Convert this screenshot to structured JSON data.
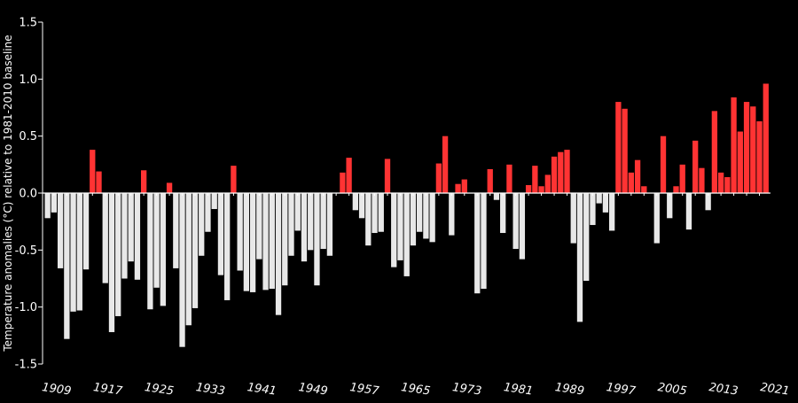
{
  "chart_data": {
    "type": "bar",
    "title": "",
    "xlabel": "",
    "ylabel": "Temperature anomalies (°C) relative to 1981-2010 baseline",
    "ylim": [
      -1.5,
      1.5
    ],
    "yticks": [
      "-1.5",
      "-1.0",
      "-0.5",
      "0.0",
      "0.5",
      "1.0",
      "1.5"
    ],
    "ytick_values": [
      -1.5,
      -1.0,
      -0.5,
      0.0,
      0.5,
      1.0,
      1.5
    ],
    "xtick_labels": [
      "1909",
      "1917",
      "1925",
      "1933",
      "1941",
      "1949",
      "1957",
      "1965",
      "1973",
      "1981",
      "1989",
      "1997",
      "2005",
      "2013",
      "2021"
    ],
    "grid": false,
    "first_year": 1908,
    "colors": {
      "positive": "#ff3333",
      "negative": "#e8e8e8",
      "axis": "#ffffff",
      "background": "#000000"
    },
    "values": [
      -0.22,
      -0.17,
      -0.66,
      -1.28,
      -1.04,
      -1.03,
      -0.67,
      0.38,
      0.19,
      -0.79,
      -1.22,
      -1.08,
      -0.75,
      -0.6,
      -0.76,
      0.2,
      -1.02,
      -0.83,
      -0.99,
      0.09,
      -0.66,
      -1.35,
      -1.16,
      -1.01,
      -0.55,
      -0.34,
      -0.14,
      -0.72,
      -0.94,
      0.24,
      -0.68,
      -0.86,
      -0.87,
      -0.58,
      -0.85,
      -0.84,
      -1.07,
      -0.81,
      -0.55,
      -0.33,
      -0.6,
      -0.5,
      -0.81,
      -0.49,
      -0.55,
      0.0,
      0.18,
      0.31,
      -0.15,
      -0.22,
      -0.46,
      -0.35,
      -0.34,
      0.3,
      -0.65,
      -0.59,
      -0.73,
      -0.46,
      -0.34,
      -0.4,
      -0.43,
      0.26,
      0.5,
      -0.37,
      0.08,
      0.12,
      0.0,
      -0.88,
      -0.84,
      0.21,
      -0.06,
      -0.35,
      0.25,
      -0.49,
      -0.58,
      0.07,
      0.24,
      0.06,
      0.16,
      0.32,
      0.36,
      0.38,
      -0.44,
      -1.13,
      -0.77,
      -0.28,
      -0.09,
      -0.17,
      -0.33,
      0.8,
      0.74,
      0.18,
      0.29,
      0.06,
      0.0,
      -0.44,
      0.5,
      -0.22,
      0.06,
      0.25,
      -0.32,
      0.46,
      0.22,
      -0.15,
      0.72,
      0.18,
      0.14,
      0.84,
      0.54,
      0.8,
      0.76,
      0.63,
      0.96
    ]
  }
}
